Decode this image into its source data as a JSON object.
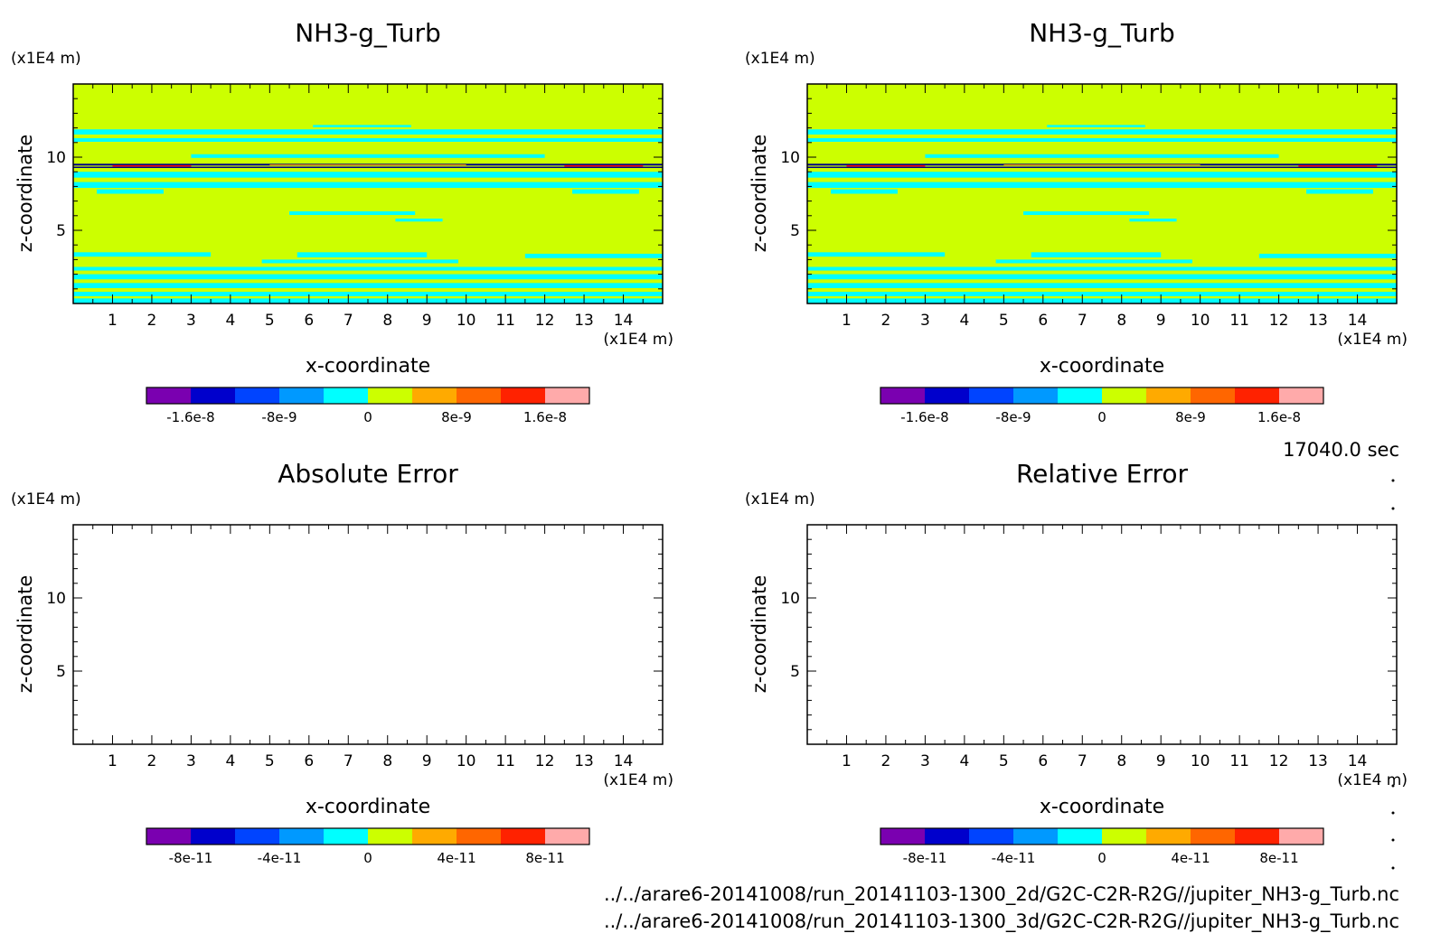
{
  "time_label": "17040.0 sec",
  "files": [
    "../../arare6-20141008/run_20141103-1300_2d/G2C-C2R-R2G//jupiter_NH3-g_Turb.nc",
    "../../arare6-20141008/run_20141103-1300_3d/G2C-C2R-R2G//jupiter_NH3-g_Turb.nc"
  ],
  "colors": {
    "cyan": "#00ffff",
    "yellow_green": "#ccff00",
    "dark_blue": "#000088",
    "red": "#ff0000",
    "orange": "#ff8800"
  },
  "chart_data": [
    {
      "type": "heatmap",
      "title": "NH3-g_Turb",
      "xlabel": "x-coordinate",
      "ylabel": "z-coordinate",
      "x_unit": "(x1E4 m)",
      "z_unit": "(x1E4 m)",
      "xlim": [
        0,
        15
      ],
      "ylim": [
        0,
        15
      ],
      "x_ticks": [
        "1",
        "2",
        "3",
        "4",
        "5",
        "6",
        "7",
        "8",
        "9",
        "10",
        "11",
        "12",
        "13",
        "14"
      ],
      "z_ticks": [
        "5",
        "10"
      ],
      "filled": true,
      "colorbar": {
        "colors": [
          "#7a00b0",
          "#0000cc",
          "#0044ff",
          "#0099ff",
          "#00ffff",
          "#ccff00",
          "#ffaa00",
          "#ff6600",
          "#ff2200",
          "#ffaaaa"
        ],
        "tick_labels": [
          "-1.6e-8",
          "-8e-9",
          "0",
          "8e-9",
          "1.6e-8"
        ]
      }
    },
    {
      "type": "heatmap",
      "title": "NH3-g_Turb",
      "xlabel": "x-coordinate",
      "ylabel": "z-coordinate",
      "x_unit": "(x1E4 m)",
      "z_unit": "(x1E4 m)",
      "xlim": [
        0,
        15
      ],
      "ylim": [
        0,
        15
      ],
      "x_ticks": [
        "1",
        "2",
        "3",
        "4",
        "5",
        "6",
        "7",
        "8",
        "9",
        "10",
        "11",
        "12",
        "13",
        "14"
      ],
      "z_ticks": [
        "5",
        "10"
      ],
      "filled": true,
      "colorbar": {
        "colors": [
          "#7a00b0",
          "#0000cc",
          "#0044ff",
          "#0099ff",
          "#00ffff",
          "#ccff00",
          "#ffaa00",
          "#ff6600",
          "#ff2200",
          "#ffaaaa"
        ],
        "tick_labels": [
          "-1.6e-8",
          "-8e-9",
          "0",
          "8e-9",
          "1.6e-8"
        ]
      }
    },
    {
      "type": "heatmap",
      "title": "Absolute Error",
      "xlabel": "x-coordinate",
      "ylabel": "z-coordinate",
      "x_unit": "(x1E4 m)",
      "z_unit": "(x1E4 m)",
      "xlim": [
        0,
        15
      ],
      "ylim": [
        0,
        15
      ],
      "x_ticks": [
        "1",
        "2",
        "3",
        "4",
        "5",
        "6",
        "7",
        "8",
        "9",
        "10",
        "11",
        "12",
        "13",
        "14"
      ],
      "z_ticks": [
        "5",
        "10"
      ],
      "filled": false,
      "colorbar": {
        "colors": [
          "#7a00b0",
          "#0000cc",
          "#0044ff",
          "#0099ff",
          "#00ffff",
          "#ccff00",
          "#ffaa00",
          "#ff6600",
          "#ff2200",
          "#ffaaaa"
        ],
        "tick_labels": [
          "-8e-11",
          "-4e-11",
          "0",
          "4e-11",
          "8e-11"
        ]
      }
    },
    {
      "type": "heatmap",
      "title": "Relative Error",
      "xlabel": "x-coordinate",
      "ylabel": "z-coordinate",
      "x_unit": "(x1E4 m)",
      "z_unit": "(x1E4 m)",
      "xlim": [
        0,
        15
      ],
      "ylim": [
        0,
        15
      ],
      "x_ticks": [
        "1",
        "2",
        "3",
        "4",
        "5",
        "6",
        "7",
        "8",
        "9",
        "10",
        "11",
        "12",
        "13",
        "14"
      ],
      "z_ticks": [
        "5",
        "10"
      ],
      "filled": false,
      "colorbar": {
        "colors": [
          "#7a00b0",
          "#0000cc",
          "#0044ff",
          "#0099ff",
          "#00ffff",
          "#ccff00",
          "#ffaa00",
          "#ff6600",
          "#ff2200",
          "#ffaaaa"
        ],
        "tick_labels": [
          "-8e-11",
          "-4e-11",
          "0",
          "4e-11",
          "8e-11"
        ]
      }
    }
  ]
}
